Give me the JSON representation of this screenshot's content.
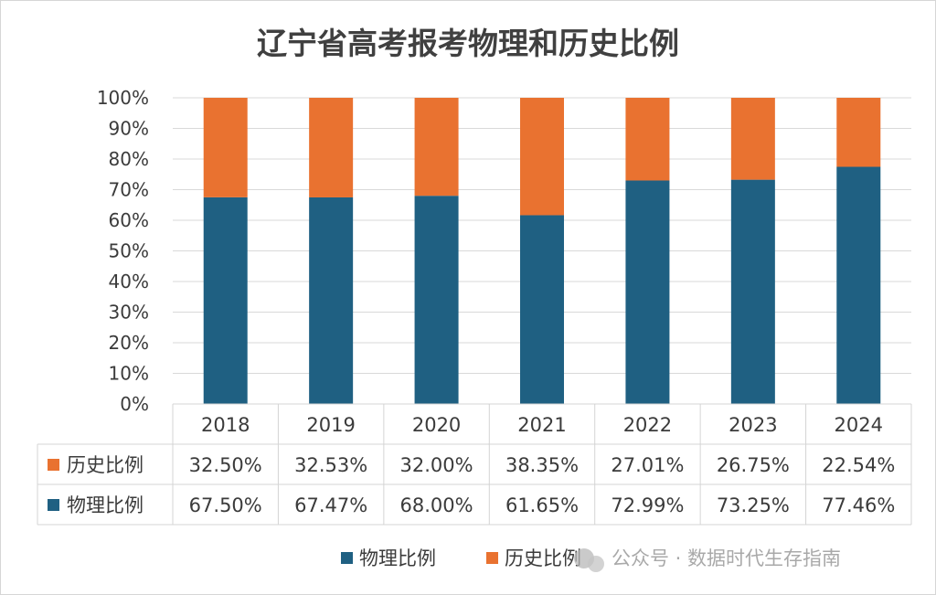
{
  "chart_data": {
    "type": "bar",
    "stacked": true,
    "title": "辽宁省高考报考物理和历史比例",
    "categories": [
      "2018",
      "2019",
      "2020",
      "2021",
      "2022",
      "2023",
      "2024"
    ],
    "series": [
      {
        "name": "物理比例",
        "color": "#1f6082",
        "values": [
          67.5,
          67.47,
          68.0,
          61.65,
          72.99,
          73.25,
          77.46
        ],
        "labels": [
          "67.50%",
          "67.47%",
          "68.00%",
          "61.65%",
          "72.99%",
          "73.25%",
          "77.46%"
        ]
      },
      {
        "name": "历史比例",
        "color": "#e97230",
        "values": [
          32.5,
          32.53,
          32.0,
          38.35,
          27.01,
          26.75,
          22.54
        ],
        "labels": [
          "32.50%",
          "32.53%",
          "32.00%",
          "38.35%",
          "27.01%",
          "26.75%",
          "22.54%"
        ]
      }
    ],
    "ylim": [
      0,
      100
    ],
    "yticks": [
      "0%",
      "10%",
      "20%",
      "30%",
      "40%",
      "50%",
      "60%",
      "70%",
      "80%",
      "90%",
      "100%"
    ],
    "grid": true,
    "data_table": true,
    "table_rows": [
      "历史比例",
      "物理比例"
    ],
    "legend": {
      "position": "bottom-right",
      "order": [
        "物理比例",
        "历史比例"
      ]
    }
  },
  "watermark": {
    "text": "公众号 · 数据时代生存指南",
    "icon": "wechat-icon"
  }
}
